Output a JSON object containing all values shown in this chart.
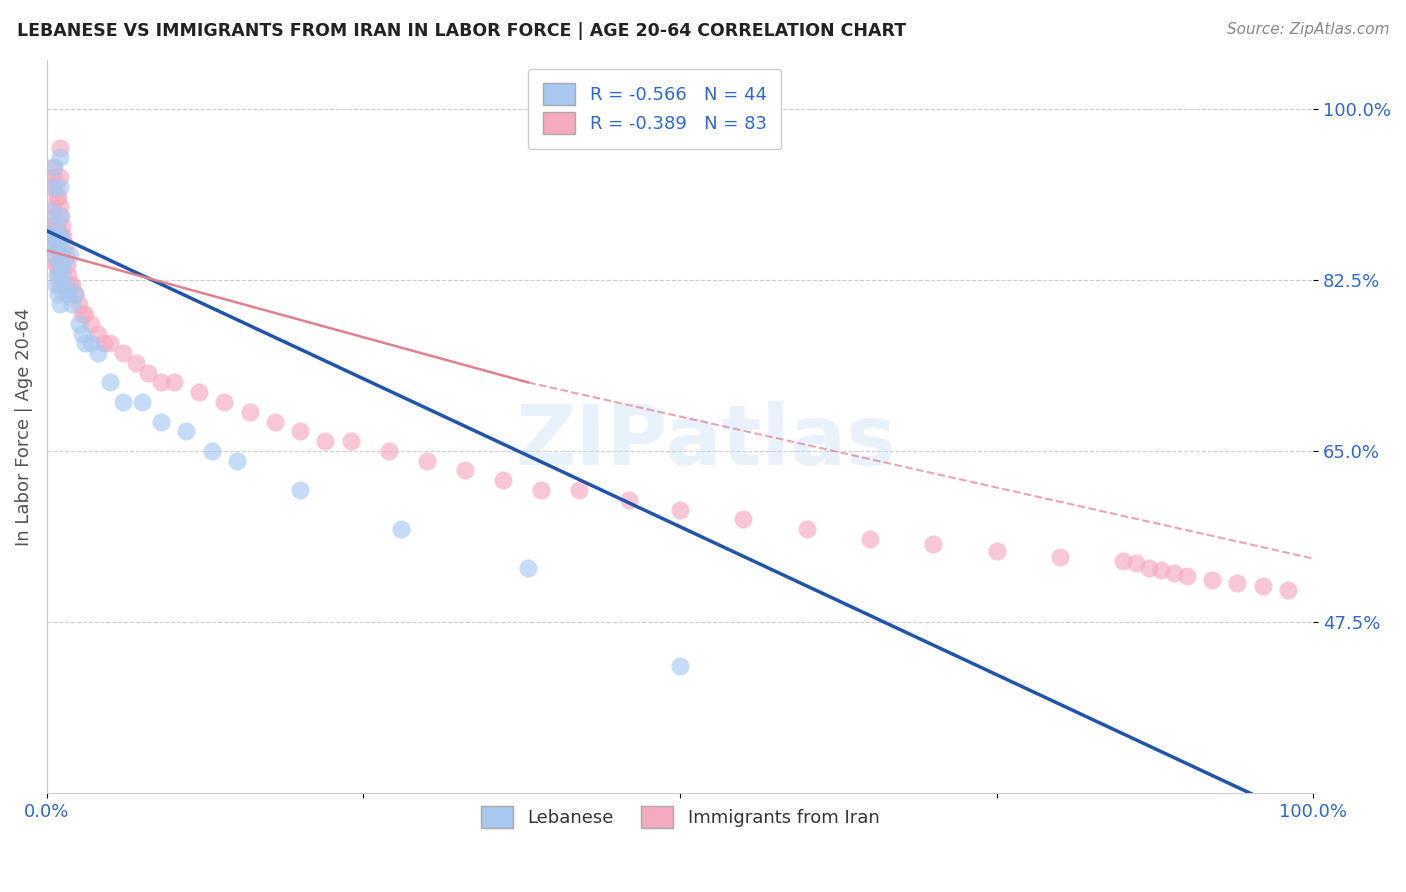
{
  "title": "LEBANESE VS IMMIGRANTS FROM IRAN IN LABOR FORCE | AGE 20-64 CORRELATION CHART",
  "source": "Source: ZipAtlas.com",
  "ylabel": "In Labor Force | Age 20-64",
  "legend_blue_label": "Lebanese",
  "legend_pink_label": "Immigrants from Iran",
  "legend_blue_r": "R = -0.566",
  "legend_blue_n": "N = 44",
  "legend_pink_r": "R = -0.389",
  "legend_pink_n": "N = 83",
  "blue_scatter_color": "#A8C8F0",
  "pink_scatter_color": "#F5AABF",
  "blue_line_color": "#2255AA",
  "pink_line_color": "#E08090",
  "watermark_text": "ZIPatlas",
  "bg_color": "#FFFFFF",
  "grid_color": "#CCCCCC",
  "tick_color": "#3366CC",
  "title_color": "#222222",
  "ylabel_color": "#555555",
  "blue_scatter_x": [
    0.003,
    0.004,
    0.005,
    0.005,
    0.006,
    0.006,
    0.007,
    0.007,
    0.008,
    0.008,
    0.009,
    0.009,
    0.01,
    0.01,
    0.01,
    0.01,
    0.01,
    0.01,
    0.011,
    0.011,
    0.012,
    0.012,
    0.013,
    0.015,
    0.016,
    0.018,
    0.02,
    0.022,
    0.025,
    0.028,
    0.03,
    0.035,
    0.04,
    0.05,
    0.06,
    0.075,
    0.09,
    0.11,
    0.13,
    0.15,
    0.2,
    0.28,
    0.38,
    0.5
  ],
  "blue_scatter_y": [
    0.895,
    0.87,
    0.92,
    0.85,
    0.94,
    0.86,
    0.88,
    0.82,
    0.87,
    0.83,
    0.86,
    0.81,
    0.95,
    0.92,
    0.89,
    0.86,
    0.84,
    0.8,
    0.87,
    0.83,
    0.855,
    0.815,
    0.84,
    0.82,
    0.81,
    0.85,
    0.8,
    0.81,
    0.78,
    0.77,
    0.76,
    0.76,
    0.75,
    0.72,
    0.7,
    0.7,
    0.68,
    0.67,
    0.65,
    0.64,
    0.61,
    0.57,
    0.53,
    0.43
  ],
  "pink_scatter_x": [
    0.002,
    0.003,
    0.003,
    0.004,
    0.004,
    0.005,
    0.005,
    0.005,
    0.006,
    0.006,
    0.006,
    0.007,
    0.007,
    0.007,
    0.008,
    0.008,
    0.008,
    0.009,
    0.009,
    0.009,
    0.01,
    0.01,
    0.01,
    0.01,
    0.01,
    0.01,
    0.011,
    0.011,
    0.012,
    0.012,
    0.013,
    0.013,
    0.014,
    0.014,
    0.015,
    0.016,
    0.017,
    0.018,
    0.02,
    0.022,
    0.025,
    0.028,
    0.03,
    0.035,
    0.04,
    0.045,
    0.05,
    0.06,
    0.07,
    0.08,
    0.09,
    0.1,
    0.12,
    0.14,
    0.16,
    0.18,
    0.2,
    0.22,
    0.24,
    0.27,
    0.3,
    0.33,
    0.36,
    0.39,
    0.42,
    0.46,
    0.5,
    0.55,
    0.6,
    0.65,
    0.7,
    0.75,
    0.8,
    0.85,
    0.86,
    0.87,
    0.88,
    0.89,
    0.9,
    0.92,
    0.94,
    0.96,
    0.98
  ],
  "pink_scatter_y": [
    0.88,
    0.93,
    0.88,
    0.92,
    0.87,
    0.94,
    0.9,
    0.86,
    0.93,
    0.89,
    0.85,
    0.92,
    0.88,
    0.84,
    0.91,
    0.88,
    0.84,
    0.91,
    0.87,
    0.83,
    0.96,
    0.93,
    0.9,
    0.87,
    0.85,
    0.82,
    0.89,
    0.85,
    0.88,
    0.84,
    0.87,
    0.83,
    0.86,
    0.82,
    0.85,
    0.84,
    0.83,
    0.82,
    0.82,
    0.81,
    0.8,
    0.79,
    0.79,
    0.78,
    0.77,
    0.76,
    0.76,
    0.75,
    0.74,
    0.73,
    0.72,
    0.72,
    0.71,
    0.7,
    0.69,
    0.68,
    0.67,
    0.66,
    0.66,
    0.65,
    0.64,
    0.63,
    0.62,
    0.61,
    0.61,
    0.6,
    0.59,
    0.58,
    0.57,
    0.56,
    0.555,
    0.548,
    0.542,
    0.538,
    0.535,
    0.53,
    0.528,
    0.525,
    0.522,
    0.518,
    0.515,
    0.512,
    0.508
  ],
  "blue_line": [
    [
      0.0,
      0.875
    ],
    [
      1.0,
      0.27
    ]
  ],
  "pink_line_solid": [
    [
      0.0,
      0.855
    ],
    [
      0.38,
      0.72
    ]
  ],
  "pink_line_dashed": [
    [
      0.38,
      0.72
    ],
    [
      1.0,
      0.54
    ]
  ],
  "xlim": [
    0.0,
    1.0
  ],
  "ylim": [
    0.3,
    1.05
  ],
  "yticks": [
    0.475,
    0.65,
    0.825,
    1.0
  ],
  "ytick_labels": [
    "47.5%",
    "65.0%",
    "82.5%",
    "100.0%"
  ],
  "xtick_labels_left": "0.0%",
  "xtick_labels_right": "100.0%"
}
